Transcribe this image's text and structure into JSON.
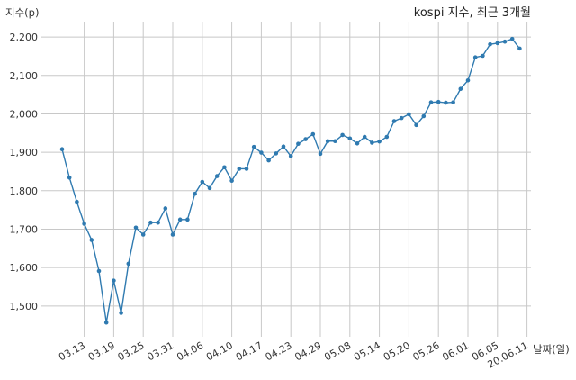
{
  "chart_data": {
    "type": "line",
    "title": "kospi 지수, 최근 3개월",
    "ylabel": "지수(p)",
    "xlabel": "날짜(일)",
    "ylim": [
      1420,
      2240
    ],
    "yticks": [
      1500,
      1600,
      1700,
      1800,
      1900,
      2000,
      2100,
      2200
    ],
    "ytick_labels": [
      "1,500",
      "1,600",
      "1,700",
      "1,800",
      "1,900",
      "2,000",
      "2,100",
      "2,200"
    ],
    "xtick_labels": [
      "03.13",
      "03.19",
      "03.25",
      "03.31",
      "04.06",
      "04.10",
      "04.17",
      "04.23",
      "04.29",
      "05.08",
      "05.14",
      "05.20",
      "05.26",
      "06.01",
      "06.05",
      "20.06.11"
    ],
    "xtick_positions": [
      3,
      7,
      11,
      15,
      19,
      23,
      27,
      31,
      35,
      39,
      43,
      47,
      51,
      55,
      59,
      63
    ],
    "grid": true,
    "color": "#2f7ab0",
    "series": [
      {
        "values": [
          1908,
          1834,
          1771,
          1714,
          1672,
          1591,
          1457,
          1566,
          1482,
          1610,
          1704,
          1686,
          1717,
          1717,
          1754,
          1686,
          1725,
          1725,
          1792,
          1823,
          1807,
          1838,
          1861,
          1826,
          1857,
          1857,
          1914,
          1899,
          1879,
          1897,
          1915,
          1890,
          1922,
          1934,
          1947,
          1896,
          1929,
          1929,
          1945,
          1936,
          1923,
          1940,
          1925,
          1928,
          1940,
          1981,
          1989,
          1999,
          1971,
          1994,
          2030,
          2031,
          2029,
          2030,
          2065,
          2087,
          2147,
          2151,
          2181,
          2184,
          2188,
          2195,
          2170
        ]
      }
    ]
  }
}
